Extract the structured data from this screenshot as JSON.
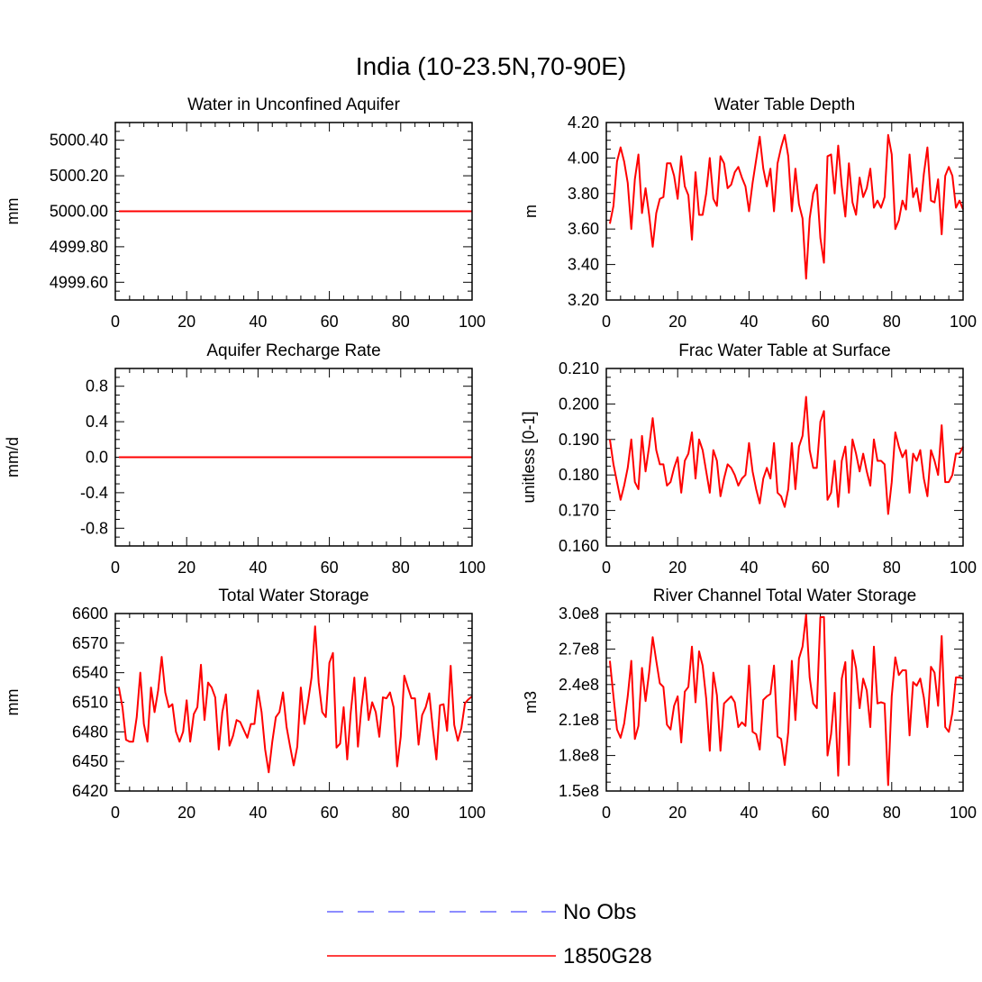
{
  "title": "India (10-23.5N,70-90E)",
  "colors": {
    "model": "#ff0000",
    "obs": "#6666ff",
    "frame": "#000000"
  },
  "legend": [
    {
      "label": "No Obs",
      "color": "#6666ff",
      "style": "dashed"
    },
    {
      "label": "1850G28",
      "color": "#ff0000",
      "style": "solid"
    }
  ],
  "chart_data": [
    {
      "type": "line",
      "title": "Water in Unconfined Aquifer",
      "ylabel": "mm",
      "xlim": [
        0,
        100
      ],
      "ylim": [
        4999.5,
        5000.5
      ],
      "xticks": [
        0,
        20,
        40,
        60,
        80,
        100
      ],
      "yticks": [
        4999.6,
        4999.8,
        5000.0,
        5000.2,
        5000.4
      ],
      "ytick_labels": [
        "4999.60",
        "4999.80",
        "5000.00",
        "5000.20",
        "5000.40"
      ],
      "series": [
        {
          "name": "1850G28",
          "x": [
            1,
            100
          ],
          "values": [
            5000.0,
            5000.0
          ]
        }
      ]
    },
    {
      "type": "line",
      "title": "Water Table Depth",
      "ylabel": "m",
      "xlim": [
        0,
        100
      ],
      "ylim": [
        3.2,
        4.2
      ],
      "xticks": [
        0,
        20,
        40,
        60,
        80,
        100
      ],
      "yticks": [
        3.2,
        3.4,
        3.6,
        3.8,
        4.0,
        4.2
      ],
      "ytick_labels": [
        "3.20",
        "3.40",
        "3.60",
        "3.80",
        "4.00",
        "4.20"
      ],
      "series": [
        {
          "name": "1850G28",
          "x_start": 1,
          "values": [
            3.63,
            3.73,
            3.98,
            4.06,
            3.98,
            3.86,
            3.6,
            3.88,
            4.02,
            3.69,
            3.83,
            3.68,
            3.5,
            3.69,
            3.77,
            3.78,
            3.97,
            3.97,
            3.9,
            3.77,
            4.01,
            3.84,
            3.79,
            3.54,
            3.92,
            3.68,
            3.68,
            3.8,
            4.0,
            3.77,
            3.73,
            4.01,
            3.97,
            3.83,
            3.85,
            3.92,
            3.95,
            3.89,
            3.84,
            3.7,
            3.86,
            3.99,
            4.12,
            3.94,
            3.84,
            3.94,
            3.7,
            3.97,
            4.06,
            4.13,
            4.01,
            3.7,
            3.94,
            3.74,
            3.66,
            3.32,
            3.66,
            3.8,
            3.85,
            3.55,
            3.41,
            4.01,
            4.02,
            3.8,
            4.07,
            3.84,
            3.67,
            3.97,
            3.75,
            3.68,
            3.89,
            3.78,
            3.83,
            3.94,
            3.72,
            3.76,
            3.72,
            3.78,
            4.13,
            4.02,
            3.6,
            3.65,
            3.76,
            3.71,
            4.02,
            3.78,
            3.83,
            3.7,
            3.91,
            4.06,
            3.76,
            3.75,
            3.88,
            3.57,
            3.9,
            3.95,
            3.9,
            3.72,
            3.76,
            3.71
          ]
        }
      ]
    },
    {
      "type": "line",
      "title": "Aquifer Recharge Rate",
      "ylabel": "mm/d",
      "xlim": [
        0,
        100
      ],
      "ylim": [
        -1.0,
        1.0
      ],
      "xticks": [
        0,
        20,
        40,
        60,
        80,
        100
      ],
      "yticks": [
        -0.8,
        -0.4,
        0.0,
        0.4,
        0.8
      ],
      "ytick_labels": [
        "-0.8",
        "-0.4",
        "0.0",
        "0.4",
        "0.8"
      ],
      "series": [
        {
          "name": "1850G28",
          "x": [
            1,
            100
          ],
          "values": [
            0.0,
            0.0
          ]
        }
      ]
    },
    {
      "type": "line",
      "title": "Frac Water Table at Surface",
      "ylabel": "unitless [0-1]",
      "xlim": [
        0,
        100
      ],
      "ylim": [
        0.16,
        0.21
      ],
      "xticks": [
        0,
        20,
        40,
        60,
        80,
        100
      ],
      "yticks": [
        0.16,
        0.17,
        0.18,
        0.19,
        0.2,
        0.21
      ],
      "ytick_labels": [
        "0.160",
        "0.170",
        "0.180",
        "0.190",
        "0.200",
        "0.210"
      ],
      "series": [
        {
          "name": "1850G28",
          "x_start": 1,
          "values": [
            0.19,
            0.183,
            0.178,
            0.173,
            0.177,
            0.182,
            0.19,
            0.178,
            0.176,
            0.191,
            0.181,
            0.188,
            0.196,
            0.187,
            0.183,
            0.183,
            0.177,
            0.178,
            0.182,
            0.185,
            0.175,
            0.184,
            0.186,
            0.192,
            0.179,
            0.19,
            0.187,
            0.181,
            0.175,
            0.187,
            0.184,
            0.174,
            0.179,
            0.183,
            0.182,
            0.18,
            0.177,
            0.179,
            0.18,
            0.189,
            0.181,
            0.176,
            0.172,
            0.179,
            0.182,
            0.179,
            0.189,
            0.175,
            0.174,
            0.171,
            0.176,
            0.189,
            0.176,
            0.188,
            0.191,
            0.202,
            0.187,
            0.182,
            0.182,
            0.195,
            0.198,
            0.173,
            0.175,
            0.184,
            0.171,
            0.184,
            0.188,
            0.175,
            0.19,
            0.186,
            0.181,
            0.186,
            0.181,
            0.177,
            0.19,
            0.184,
            0.184,
            0.183,
            0.169,
            0.178,
            0.192,
            0.188,
            0.185,
            0.187,
            0.175,
            0.186,
            0.184,
            0.187,
            0.179,
            0.174,
            0.187,
            0.184,
            0.18,
            0.194,
            0.178,
            0.178,
            0.18,
            0.186,
            0.186,
            0.188
          ]
        }
      ]
    },
    {
      "type": "line",
      "title": "Total Water Storage",
      "ylabel": "mm",
      "xlim": [
        0,
        100
      ],
      "ylim": [
        6420,
        6600
      ],
      "xticks": [
        0,
        20,
        40,
        60,
        80,
        100
      ],
      "yticks": [
        6420,
        6450,
        6480,
        6510,
        6540,
        6570,
        6600
      ],
      "ytick_labels": [
        "6420",
        "6450",
        "6480",
        "6510",
        "6540",
        "6570",
        "6600"
      ],
      "series": [
        {
          "name": "1850G28",
          "x_start": 1,
          "values": [
            6525,
            6505,
            6472,
            6470,
            6470,
            6495,
            6540,
            6488,
            6470,
            6525,
            6500,
            6522,
            6556,
            6520,
            6505,
            6508,
            6480,
            6470,
            6480,
            6512,
            6470,
            6498,
            6505,
            6548,
            6492,
            6530,
            6525,
            6515,
            6462,
            6500,
            6518,
            6466,
            6476,
            6492,
            6490,
            6482,
            6474,
            6488,
            6488,
            6522,
            6500,
            6462,
            6439,
            6470,
            6495,
            6500,
            6520,
            6485,
            6465,
            6446,
            6465,
            6525,
            6488,
            6510,
            6535,
            6587,
            6530,
            6500,
            6495,
            6550,
            6560,
            6464,
            6468,
            6505,
            6452,
            6500,
            6535,
            6465,
            6505,
            6535,
            6492,
            6510,
            6500,
            6475,
            6515,
            6514,
            6520,
            6505,
            6445,
            6475,
            6537,
            6525,
            6514,
            6514,
            6467,
            6497,
            6505,
            6519,
            6483,
            6452,
            6507,
            6508,
            6481,
            6547,
            6487,
            6471,
            6484,
            6509,
            6513,
            6516
          ]
        }
      ]
    },
    {
      "type": "line",
      "title": "River Channel Total Water Storage",
      "ylabel": "m3",
      "xlim": [
        0,
        100
      ],
      "ylim": [
        150000000.0,
        300000000.0
      ],
      "xticks": [
        0,
        20,
        40,
        60,
        80,
        100
      ],
      "yticks": [
        150000000.0,
        180000000.0,
        210000000.0,
        240000000.0,
        270000000.0,
        300000000.0
      ],
      "ytick_labels": [
        "1.5e8",
        "1.8e8",
        "2.1e8",
        "2.4e8",
        "2.7e8",
        "3.0e8"
      ],
      "series": [
        {
          "name": "1850G28",
          "x_start": 1,
          "values": [
            260000000.0,
            230000000.0,
            202000000.0,
            195000000.0,
            207000000.0,
            230000000.0,
            260000000.0,
            194000000.0,
            205000000.0,
            254000000.0,
            226000000.0,
            250000000.0,
            280000000.0,
            260000000.0,
            241000000.0,
            238000000.0,
            206000000.0,
            202000000.0,
            222000000.0,
            230000000.0,
            191000000.0,
            234000000.0,
            238000000.0,
            272000000.0,
            225000000.0,
            268000000.0,
            256000000.0,
            228000000.0,
            184000000.0,
            250000000.0,
            231000000.0,
            184000000.0,
            224000000.0,
            227000000.0,
            230000000.0,
            225000000.0,
            204000000.0,
            208000000.0,
            205000000.0,
            256000000.0,
            200000000.0,
            198000000.0,
            185000000.0,
            227000000.0,
            230000000.0,
            232000000.0,
            256000000.0,
            196000000.0,
            194000000.0,
            172000000.0,
            200000000.0,
            260000000.0,
            210000000.0,
            262000000.0,
            272000000.0,
            299000000.0,
            246000000.0,
            224000000.0,
            220000000.0,
            297000000.0,
            297000000.0,
            180000000.0,
            198000000.0,
            233000000.0,
            163000000.0,
            245000000.0,
            259000000.0,
            172000000.0,
            269000000.0,
            254000000.0,
            220000000.0,
            245000000.0,
            235000000.0,
            204000000.0,
            272000000.0,
            224000000.0,
            225000000.0,
            224000000.0,
            155000000.0,
            230000000.0,
            263000000.0,
            248000000.0,
            252000000.0,
            252000000.0,
            197000000.0,
            242000000.0,
            239000000.0,
            245000000.0,
            229000000.0,
            204000000.0,
            255000000.0,
            250000000.0,
            222000000.0,
            281000000.0,
            204000000.0,
            200000000.0,
            216000000.0,
            246000000.0,
            246000000.0,
            245000000.0
          ]
        }
      ]
    }
  ]
}
